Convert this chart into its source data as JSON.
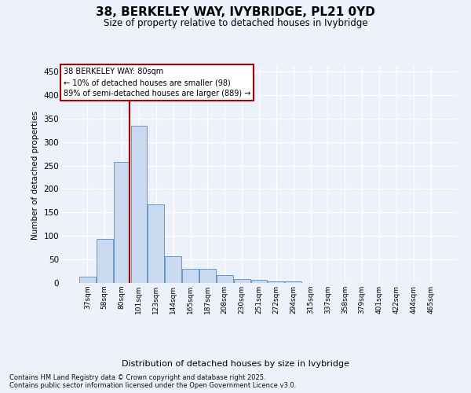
{
  "title": "38, BERKELEY WAY, IVYBRIDGE, PL21 0YD",
  "subtitle": "Size of property relative to detached houses in Ivybridge",
  "xlabel": "Distribution of detached houses by size in Ivybridge",
  "ylabel": "Number of detached properties",
  "bar_labels": [
    "37sqm",
    "58sqm",
    "80sqm",
    "101sqm",
    "123sqm",
    "144sqm",
    "165sqm",
    "187sqm",
    "208sqm",
    "230sqm",
    "251sqm",
    "272sqm",
    "294sqm",
    "315sqm",
    "337sqm",
    "358sqm",
    "379sqm",
    "401sqm",
    "422sqm",
    "444sqm",
    "465sqm"
  ],
  "bar_values": [
    13,
    93,
    258,
    335,
    168,
    57,
    30,
    30,
    16,
    9,
    6,
    4,
    4,
    0,
    0,
    0,
    0,
    0,
    0,
    0,
    0
  ],
  "bar_color": "#c9d9ef",
  "bar_edge_color": "#6699cc",
  "marker_bar_index": 2,
  "marker_line_color": "#aa0000",
  "annotation_line1": "38 BERKELEY WAY: 80sqm",
  "annotation_line2": "← 10% of detached houses are smaller (98)",
  "annotation_line3": "89% of semi-detached houses are larger (889) →",
  "annotation_box_edgecolor": "#aa0000",
  "ylim": [
    0,
    460
  ],
  "yticks": [
    0,
    50,
    100,
    150,
    200,
    250,
    300,
    350,
    400,
    450
  ],
  "background_color": "#edf1fb",
  "grid_color": "#ffffff",
  "footnote_line1": "Contains HM Land Registry data © Crown copyright and database right 2025.",
  "footnote_line2": "Contains public sector information licensed under the Open Government Licence v3.0."
}
